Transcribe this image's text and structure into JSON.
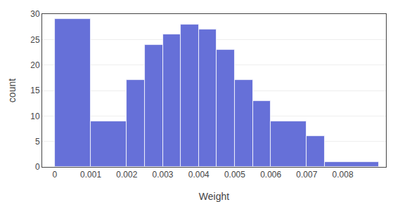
{
  "chart_data": {
    "type": "histogram",
    "bins": [
      0,
      0.001,
      0.002,
      0.0025,
      0.003,
      0.0035,
      0.004,
      0.0045,
      0.005,
      0.0055,
      0.006,
      0.007,
      0.0075,
      0.009
    ],
    "values": [
      29,
      9,
      17,
      24,
      26,
      28,
      27,
      23,
      17,
      13,
      9,
      6,
      1
    ],
    "color": "#6670d8",
    "xlabel": "Weight",
    "ylabel": "count",
    "xlim": [
      -0.00035,
      0.0092
    ],
    "ylim": [
      0,
      30
    ],
    "xticks": [
      0,
      0.001,
      0.002,
      0.003,
      0.004,
      0.005,
      0.006,
      0.007,
      0.008
    ],
    "yticks": [
      0,
      5,
      10,
      15,
      20,
      25,
      30
    ],
    "grid": true
  }
}
